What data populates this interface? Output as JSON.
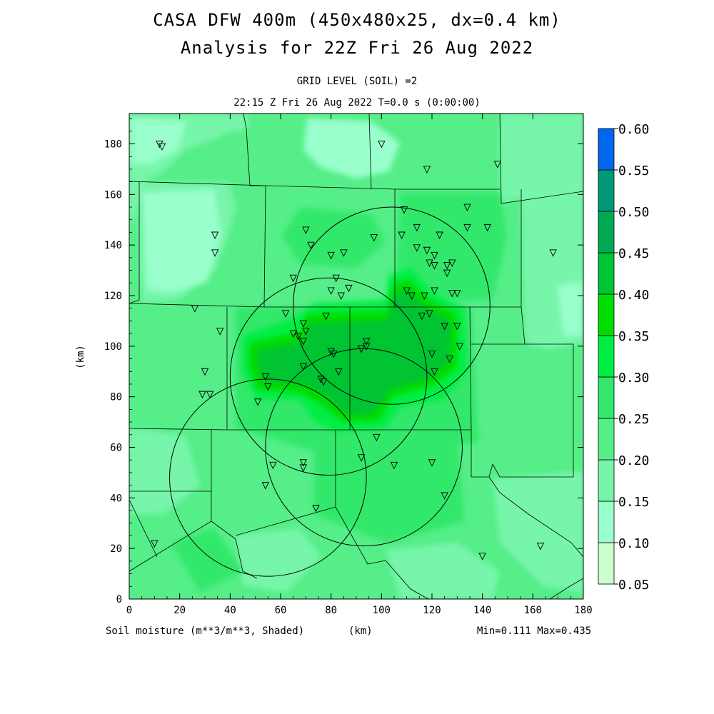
{
  "header": {
    "title_line1": "CASA DFW 400m (450x480x25, dx=0.4 km)",
    "title_line2": "Analysis for 22Z Fri 26 Aug 2022",
    "grid_level": "GRID LEVEL (SOIL) =2",
    "time_line": "22:15 Z Fri 26 Aug 2022   T=0.0 s (0:00:00)"
  },
  "footer": {
    "field_label": "Soil moisture (m**3/m**3, Shaded)",
    "x_unit": "(km)",
    "min_max": "Min=0.111 Max=0.435"
  },
  "axes": {
    "y_label": "(km)",
    "x_ticks": [
      "0",
      "20",
      "40",
      "60",
      "80",
      "100",
      "120",
      "140",
      "160",
      "180"
    ],
    "y_ticks": [
      "0",
      "20",
      "40",
      "60",
      "80",
      "100",
      "120",
      "140",
      "160",
      "180"
    ]
  },
  "colorbar": {
    "labels": [
      "0.05",
      "0.10",
      "0.15",
      "0.20",
      "0.25",
      "0.30",
      "0.35",
      "0.40",
      "0.45",
      "0.50",
      "0.55",
      "0.60"
    ],
    "colors": [
      "#ccffcc",
      "#99ffcc",
      "#77f5aa",
      "#55ee88",
      "#33e86a",
      "#00ee44",
      "#00dd00",
      "#00c433",
      "#00aa55",
      "#009977",
      "#0066ee"
    ]
  },
  "chart_data": {
    "type": "heatmap",
    "field": "Soil moisture",
    "units": "m**3/m**3",
    "xlim": [
      0,
      180
    ],
    "ylim": [
      0,
      192
    ],
    "levels": [
      0.05,
      0.1,
      0.15,
      0.2,
      0.25,
      0.3,
      0.35,
      0.4,
      0.45,
      0.5,
      0.55,
      0.6
    ],
    "min": 0.111,
    "max": 0.435,
    "radar_rings": [
      {
        "cx": 104,
        "cy": 116,
        "r": 39
      },
      {
        "cx": 79,
        "cy": 88,
        "r": 39
      },
      {
        "cx": 93,
        "cy": 60,
        "r": 39
      },
      {
        "cx": 55,
        "cy": 48,
        "r": 39
      }
    ],
    "stations": [
      [
        12,
        180
      ],
      [
        13,
        179
      ],
      [
        100,
        180
      ],
      [
        118,
        170
      ],
      [
        146,
        172
      ],
      [
        34,
        144
      ],
      [
        34,
        137
      ],
      [
        70,
        146
      ],
      [
        72,
        140
      ],
      [
        80,
        136
      ],
      [
        85,
        137
      ],
      [
        97,
        143
      ],
      [
        109,
        154
      ],
      [
        108,
        144
      ],
      [
        114,
        147
      ],
      [
        114,
        139
      ],
      [
        118,
        138
      ],
      [
        119,
        133
      ],
      [
        121,
        136
      ],
      [
        123,
        144
      ],
      [
        134,
        155
      ],
      [
        134,
        147
      ],
      [
        142,
        147
      ],
      [
        168,
        137
      ],
      [
        121,
        132
      ],
      [
        126,
        132
      ],
      [
        126,
        129
      ],
      [
        128,
        133
      ],
      [
        65,
        127
      ],
      [
        82,
        127
      ],
      [
        87,
        123
      ],
      [
        80,
        122
      ],
      [
        84,
        120
      ],
      [
        110,
        122
      ],
      [
        112,
        120
      ],
      [
        117,
        120
      ],
      [
        121,
        122
      ],
      [
        130,
        121
      ],
      [
        128,
        121
      ],
      [
        26,
        115
      ],
      [
        62,
        113
      ],
      [
        78,
        112
      ],
      [
        116,
        112
      ],
      [
        119,
        113
      ],
      [
        125,
        108
      ],
      [
        130,
        108
      ],
      [
        36,
        106
      ],
      [
        69,
        109
      ],
      [
        65,
        105
      ],
      [
        70,
        106
      ],
      [
        67,
        104
      ],
      [
        69,
        102
      ],
      [
        94,
        102
      ],
      [
        94,
        100
      ],
      [
        92,
        99
      ],
      [
        80,
        98
      ],
      [
        81,
        97
      ],
      [
        120,
        97
      ],
      [
        131,
        100
      ],
      [
        127,
        95
      ],
      [
        30,
        90
      ],
      [
        54,
        88
      ],
      [
        69,
        92
      ],
      [
        83,
        90
      ],
      [
        121,
        90
      ],
      [
        76,
        87
      ],
      [
        77,
        86
      ],
      [
        55,
        84
      ],
      [
        32,
        81
      ],
      [
        29,
        81
      ],
      [
        51,
        78
      ],
      [
        98,
        64
      ],
      [
        57,
        53
      ],
      [
        69,
        54
      ],
      [
        69,
        52
      ],
      [
        92,
        56
      ],
      [
        105,
        53
      ],
      [
        120,
        54
      ],
      [
        54,
        45
      ],
      [
        74,
        36
      ],
      [
        125,
        41
      ],
      [
        10,
        22
      ],
      [
        140,
        17
      ],
      [
        163,
        21
      ]
    ]
  }
}
